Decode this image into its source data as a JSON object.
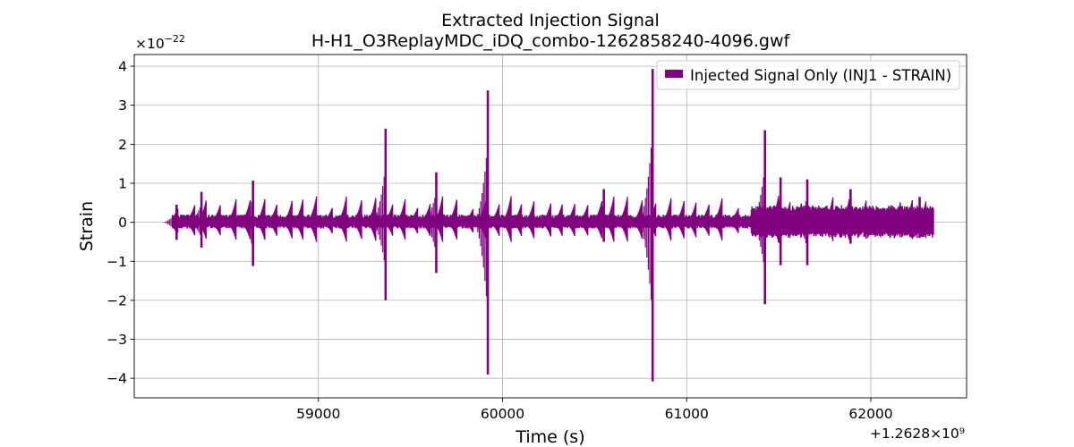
{
  "chart_data": {
    "type": "line",
    "title": "Extracted Injection Signal",
    "subtitle": "H-H1_O3ReplayMDC_iDQ_combo-1262858240-4096.gwf",
    "xlabel": "Time (s)",
    "ylabel": "Strain",
    "x_offset_text": "+1.2628×10⁹",
    "y_scale_base": "×10",
    "y_scale_exp": "−22",
    "xlim": [
      58000,
      62520
    ],
    "ylim": [
      -4.5,
      4.3
    ],
    "x_ticks": [
      59000,
      60000,
      61000,
      62000
    ],
    "x_tick_labels": [
      "59000",
      "60000",
      "61000",
      "62000"
    ],
    "y_ticks": [
      -4,
      -3,
      -2,
      -1,
      0,
      1,
      2,
      3,
      4
    ],
    "y_tick_labels": [
      "−4",
      "−3",
      "−2",
      "−1",
      "0",
      "1",
      "2",
      "3",
      "4"
    ],
    "grid": true,
    "legend_position": "top-right",
    "series": [
      {
        "name": "Injected Signal Only (INJ1 - STRAIN)",
        "color": "#800080",
        "x_range": [
          58207,
          62340
        ],
        "envelope_max": 0.3,
        "spikes": [
          {
            "x": 58230,
            "y_max": 0.45,
            "y_min": -0.45
          },
          {
            "x": 58365,
            "y_max": 0.78,
            "y_min": -0.65
          },
          {
            "x": 58645,
            "y_max": 1.07,
            "y_min": -1.12
          },
          {
            "x": 59365,
            "y_max": 2.4,
            "y_min": -2.0
          },
          {
            "x": 59640,
            "y_max": 1.28,
            "y_min": -1.3
          },
          {
            "x": 59920,
            "y_max": 3.38,
            "y_min": -3.9
          },
          {
            "x": 60550,
            "y_max": 0.85,
            "y_min": -0.5
          },
          {
            "x": 60815,
            "y_max": 3.93,
            "y_min": -4.08
          },
          {
            "x": 61425,
            "y_max": 2.36,
            "y_min": -2.1
          },
          {
            "x": 61510,
            "y_max": 1.15,
            "y_min": -1.1
          },
          {
            "x": 61655,
            "y_max": 1.1,
            "y_min": -1.1
          },
          {
            "x": 61890,
            "y_max": 0.85,
            "y_min": -0.55
          },
          {
            "x": 62265,
            "y_max": 0.65,
            "y_min": -0.4
          }
        ]
      }
    ]
  }
}
